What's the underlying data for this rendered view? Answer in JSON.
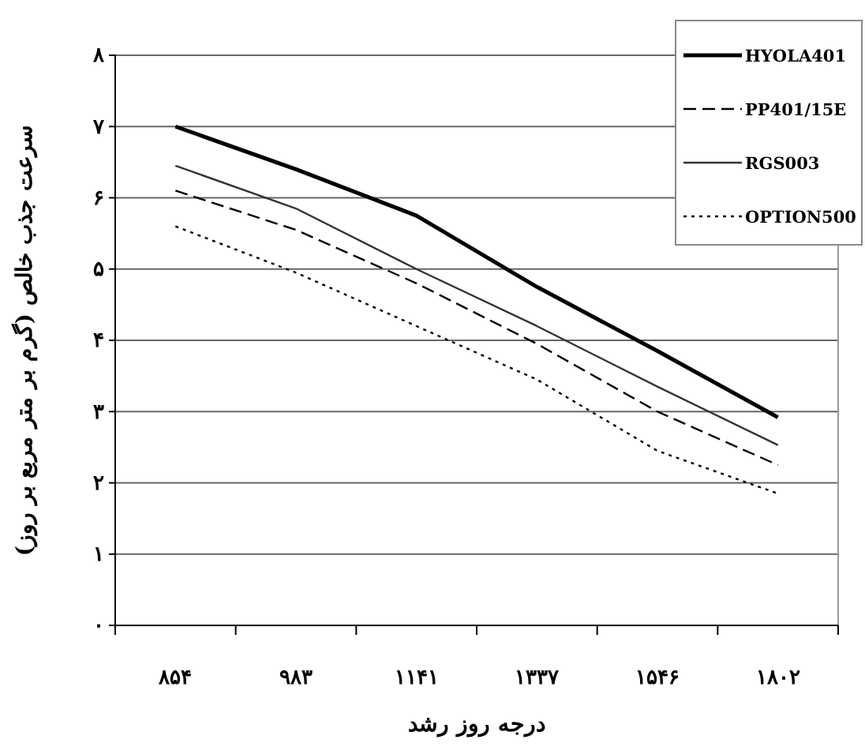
{
  "chart_data": {
    "type": "line",
    "xlabel": "درجه روز رشد",
    "ylabel": "سرعت جذب خالص (گرم بر متر مربع بر روز)",
    "categories": [
      "۸۵۴",
      "۹۸۳",
      "۱۱۴۱",
      "۱۳۳۷",
      "۱۵۴۶",
      "۱۸۰۲"
    ],
    "ylim": [
      0,
      8
    ],
    "yticks": [
      {
        "value": 0,
        "label": "۰"
      },
      {
        "value": 1,
        "label": "۱"
      },
      {
        "value": 2,
        "label": "۲"
      },
      {
        "value": 3,
        "label": "۳"
      },
      {
        "value": 4,
        "label": "۴"
      },
      {
        "value": 5,
        "label": "۵"
      },
      {
        "value": 6,
        "label": "۶"
      },
      {
        "value": 7,
        "label": "۷"
      },
      {
        "value": 8,
        "label": "۸"
      }
    ],
    "grid": "y",
    "legend": "top right",
    "marker": "none",
    "series": [
      {
        "name": "HYOLA401",
        "color": "#000000",
        "line_style": "solid",
        "values": [
          7.0,
          6.4,
          5.75,
          4.75,
          3.85,
          2.92
        ]
      },
      {
        "name": "PP401/15E",
        "color": "#000000",
        "line_style": "dashed",
        "values": [
          6.1,
          5.55,
          4.8,
          3.95,
          3.0,
          2.25
        ]
      },
      {
        "name": "RGS003",
        "color": "#333333",
        "line_style": "solid",
        "values": [
          6.45,
          5.85,
          5.0,
          4.2,
          3.35,
          2.53
        ]
      },
      {
        "name": "OPTION500",
        "color": "#000000",
        "line_style": "dotted",
        "values": [
          5.6,
          4.95,
          4.2,
          3.45,
          2.45,
          1.85
        ]
      }
    ]
  }
}
